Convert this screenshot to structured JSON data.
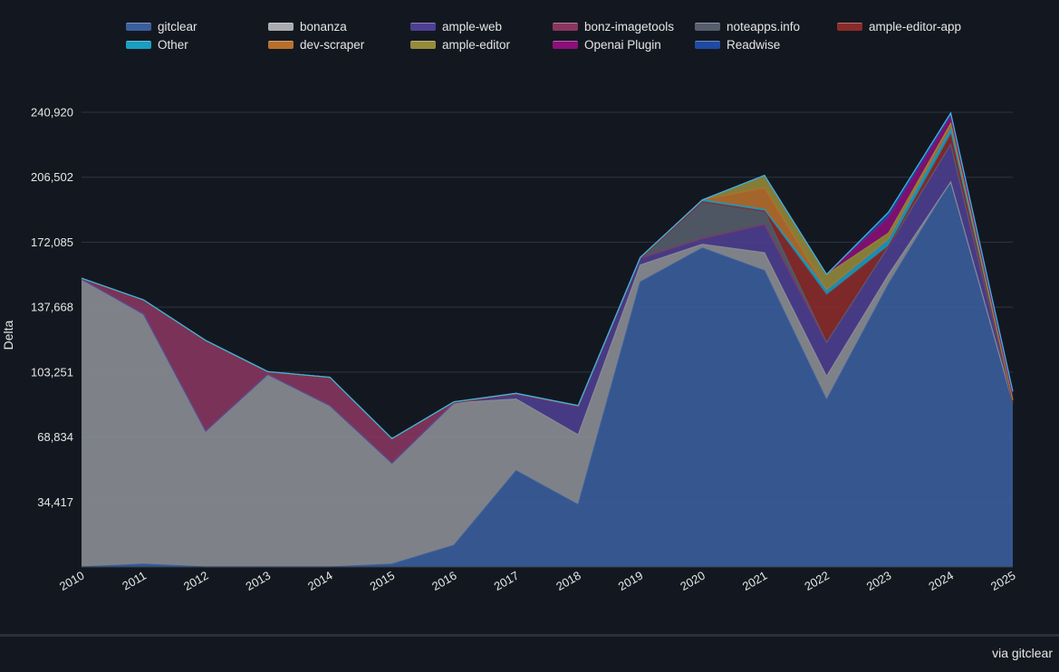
{
  "chart_data": {
    "type": "area",
    "stacked": true,
    "title": "",
    "xlabel": "",
    "ylabel": "Delta",
    "ylim": [
      0,
      240920
    ],
    "y_ticks": [
      "34,417",
      "68,834",
      "103,251",
      "137,668",
      "172,085",
      "206,502",
      "240,920"
    ],
    "y_tick_values": [
      34417,
      68834,
      103251,
      137668,
      172085,
      206502,
      240920
    ],
    "x": [
      "2010",
      "2011",
      "2012",
      "2013",
      "2014",
      "2015",
      "2016",
      "2017",
      "2018",
      "2019",
      "2020",
      "2021",
      "2022",
      "2023",
      "2024",
      "2025"
    ],
    "grid": true,
    "legend_position": "top",
    "series": [
      {
        "name": "gitclear",
        "color": "#3a5f9e",
        "values": [
          0,
          1500,
          0,
          0,
          0,
          1500,
          11500,
          51000,
          33000,
          151000,
          169000,
          157000,
          88500,
          150000,
          204000,
          87000
        ]
      },
      {
        "name": "bonanza",
        "color": "#8d9096",
        "values": [
          152500,
          132500,
          72000,
          102000,
          85500,
          53500,
          75500,
          38000,
          37000,
          9000,
          2000,
          9500,
          12500,
          5000,
          0,
          0
        ]
      },
      {
        "name": "ample-web",
        "color": "#4e3f92",
        "values": [
          0,
          0,
          0,
          0,
          0,
          0,
          0,
          2500,
          15000,
          3500,
          3000,
          15000,
          18000,
          15000,
          20000,
          0
        ]
      },
      {
        "name": "bonz-imagetools",
        "color": "#8a3560",
        "values": [
          0,
          7000,
          47500,
          1000,
          14500,
          12500,
          0,
          0,
          0,
          0,
          0,
          0,
          0,
          0,
          0,
          0
        ]
      },
      {
        "name": "noteapps.info",
        "color": "#565d6c",
        "values": [
          0,
          0,
          0,
          0,
          0,
          0,
          0,
          0,
          0,
          0,
          19500,
          7000,
          0,
          0,
          0,
          0
        ]
      },
      {
        "name": "ample-editor-app",
        "color": "#8c2a2a",
        "values": [
          0,
          0,
          0,
          0,
          0,
          0,
          0,
          0,
          0,
          0,
          0,
          0,
          25000,
          0,
          5000,
          0
        ]
      },
      {
        "name": "Other",
        "color": "#1b9ec2",
        "values": [
          500,
          500,
          500,
          500,
          500,
          500,
          500,
          500,
          500,
          500,
          1000,
          1000,
          3000,
          4000,
          3000,
          1500
        ]
      },
      {
        "name": "dev-scraper",
        "color": "#b8702d",
        "values": [
          0,
          0,
          0,
          0,
          0,
          0,
          0,
          0,
          0,
          0,
          0,
          11500,
          0,
          0,
          3000,
          0
        ]
      },
      {
        "name": "ample-editor",
        "color": "#958b3a",
        "values": [
          0,
          0,
          0,
          0,
          0,
          0,
          0,
          0,
          0,
          0,
          0,
          6500,
          8000,
          3000,
          0,
          0
        ]
      },
      {
        "name": "Openai Plugin",
        "color": "#8c0f7a",
        "values": [
          0,
          0,
          0,
          0,
          0,
          0,
          0,
          0,
          0,
          0,
          0,
          0,
          0,
          8000,
          3500,
          2000
        ]
      },
      {
        "name": "Readwise",
        "color": "#1f4aa3",
        "values": [
          0,
          0,
          0,
          0,
          0,
          0,
          0,
          0,
          0,
          0,
          0,
          0,
          0,
          3000,
          2000,
          2500
        ]
      }
    ]
  },
  "legend": [
    {
      "label": "gitclear",
      "color": "#3a5f9e"
    },
    {
      "label": "bonanza",
      "color": "#a9abb0"
    },
    {
      "label": "ample-web",
      "color": "#4e3f92"
    },
    {
      "label": "bonz-imagetools",
      "color": "#8a3560"
    },
    {
      "label": "noteapps.info",
      "color": "#565d6c"
    },
    {
      "label": "ample-editor-app",
      "color": "#8c2a2a"
    },
    {
      "label": "Other",
      "color": "#1b9ec2"
    },
    {
      "label": "dev-scraper",
      "color": "#b8702d"
    },
    {
      "label": "ample-editor",
      "color": "#958b3a"
    },
    {
      "label": "Openai Plugin",
      "color": "#8c0f7a"
    },
    {
      "label": "Readwise",
      "color": "#1f4aa3"
    }
  ],
  "footer": {
    "attribution": "via gitclear"
  }
}
